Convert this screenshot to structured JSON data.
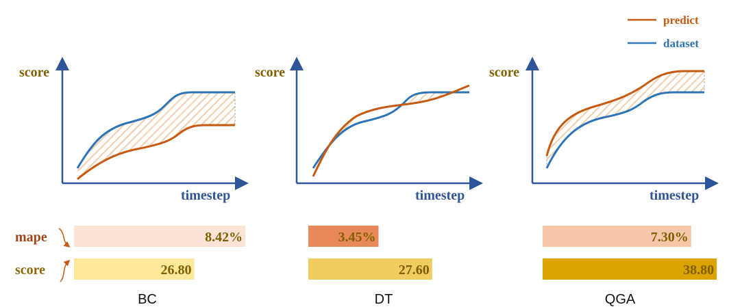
{
  "legend": [
    {
      "label": "predict",
      "color": "#c55a11"
    },
    {
      "label": "dataset",
      "color": "#2e75b6"
    }
  ],
  "axis_labels": {
    "y": "score",
    "x": "timestep"
  },
  "row_labels": {
    "mape": "mape",
    "score": "score"
  },
  "panels": [
    {
      "name": "BC",
      "mape": {
        "value": 8.42,
        "label": "8.42%",
        "color": "#fbe3d6"
      },
      "score": {
        "value": 26.8,
        "label": "26.80",
        "color": "#fde89a"
      }
    },
    {
      "name": "DT",
      "mape": {
        "value": 3.45,
        "label": "3.45%",
        "color": "#e8895a"
      },
      "score": {
        "value": 27.6,
        "label": "27.60",
        "color": "#f0cd60"
      }
    },
    {
      "name": "QGA",
      "mape": {
        "value": 7.3,
        "label": "7.30%",
        "color": "#f5c6a8"
      },
      "score": {
        "value": 38.8,
        "label": "38.80",
        "color": "#dba400"
      }
    }
  ]
}
